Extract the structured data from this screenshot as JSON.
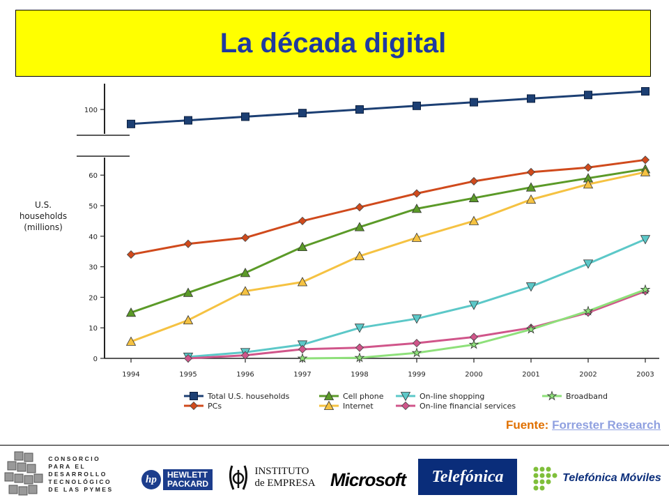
{
  "header": {
    "title": "La década digital"
  },
  "source": {
    "label": "Fuente:",
    "link": "Forrester Research"
  },
  "colors": {
    "title_bg": "#ffff00",
    "title_text": "#1f3aa0",
    "source_label": "#e07000",
    "source_link": "#8fa0e0"
  },
  "chart_data": {
    "type": "line",
    "title": "",
    "xlabel": "",
    "ylabel": "U.S. households (millions)",
    "y_ticks": [
      "0",
      "10",
      "20",
      "30",
      "40",
      "50",
      "60",
      "100"
    ],
    "x": [
      1994,
      1995,
      1996,
      1997,
      1998,
      1999,
      2000,
      2001,
      2002,
      2003
    ],
    "x_labels": [
      "1994",
      "1995",
      "1996",
      "1997",
      "1998",
      "1999",
      "2000",
      "2001",
      "2002",
      "2003"
    ],
    "axis_break": "between 60 and 100",
    "grid": false,
    "legend_position": "bottom",
    "series": [
      {
        "name": "Total U.S. households",
        "marker": "square",
        "color": "#1c3f73",
        "values": [
          96,
          97,
          98,
          99,
          100,
          101,
          102,
          103,
          104,
          105
        ]
      },
      {
        "name": "PCs",
        "marker": "diamond",
        "color": "#d04a1c",
        "values": [
          34,
          37.5,
          39.5,
          45,
          49.5,
          54,
          58,
          61,
          62.5,
          65
        ]
      },
      {
        "name": "Cell phone",
        "marker": "triangle-up",
        "color": "#5b9a28",
        "values": [
          15,
          21.5,
          28,
          36.5,
          43,
          49,
          52.5,
          56,
          59,
          62
        ]
      },
      {
        "name": "Internet",
        "marker": "triangle-up",
        "color": "#f5c242",
        "values": [
          5.5,
          12.5,
          22,
          25,
          33.5,
          39.5,
          45,
          52,
          57,
          61
        ]
      },
      {
        "name": "On-line shopping",
        "marker": "triangle-down",
        "color": "#5cc8c8",
        "values": [
          null,
          0.5,
          2,
          4.5,
          10,
          13,
          17.5,
          23.5,
          31,
          39
        ]
      },
      {
        "name": "On-line financial services",
        "marker": "diamond",
        "color": "#d0558a",
        "values": [
          null,
          0,
          1,
          3,
          3.5,
          5,
          7,
          10,
          15,
          22
        ]
      },
      {
        "name": "Broadband",
        "marker": "star",
        "color": "#8ee07a",
        "values": [
          null,
          null,
          null,
          0,
          0.2,
          1.8,
          4.5,
          9.5,
          15.5,
          22.5
        ]
      }
    ]
  },
  "footer_logos": {
    "consorcio": [
      "CONSORCIO",
      "PARA EL",
      "DESARROLLO",
      "TECNOLÓGICO",
      "DE LAS PYMES"
    ],
    "hp_mark": "hp",
    "hp_text": [
      "HEWLETT",
      "PACKARD"
    ],
    "ie_text": [
      "INSTITUTO",
      "de EMPRESA"
    ],
    "microsoft": "Microsoft",
    "telefonica": "Telefónica",
    "telefonica_moviles": "Telefónica Móviles"
  }
}
